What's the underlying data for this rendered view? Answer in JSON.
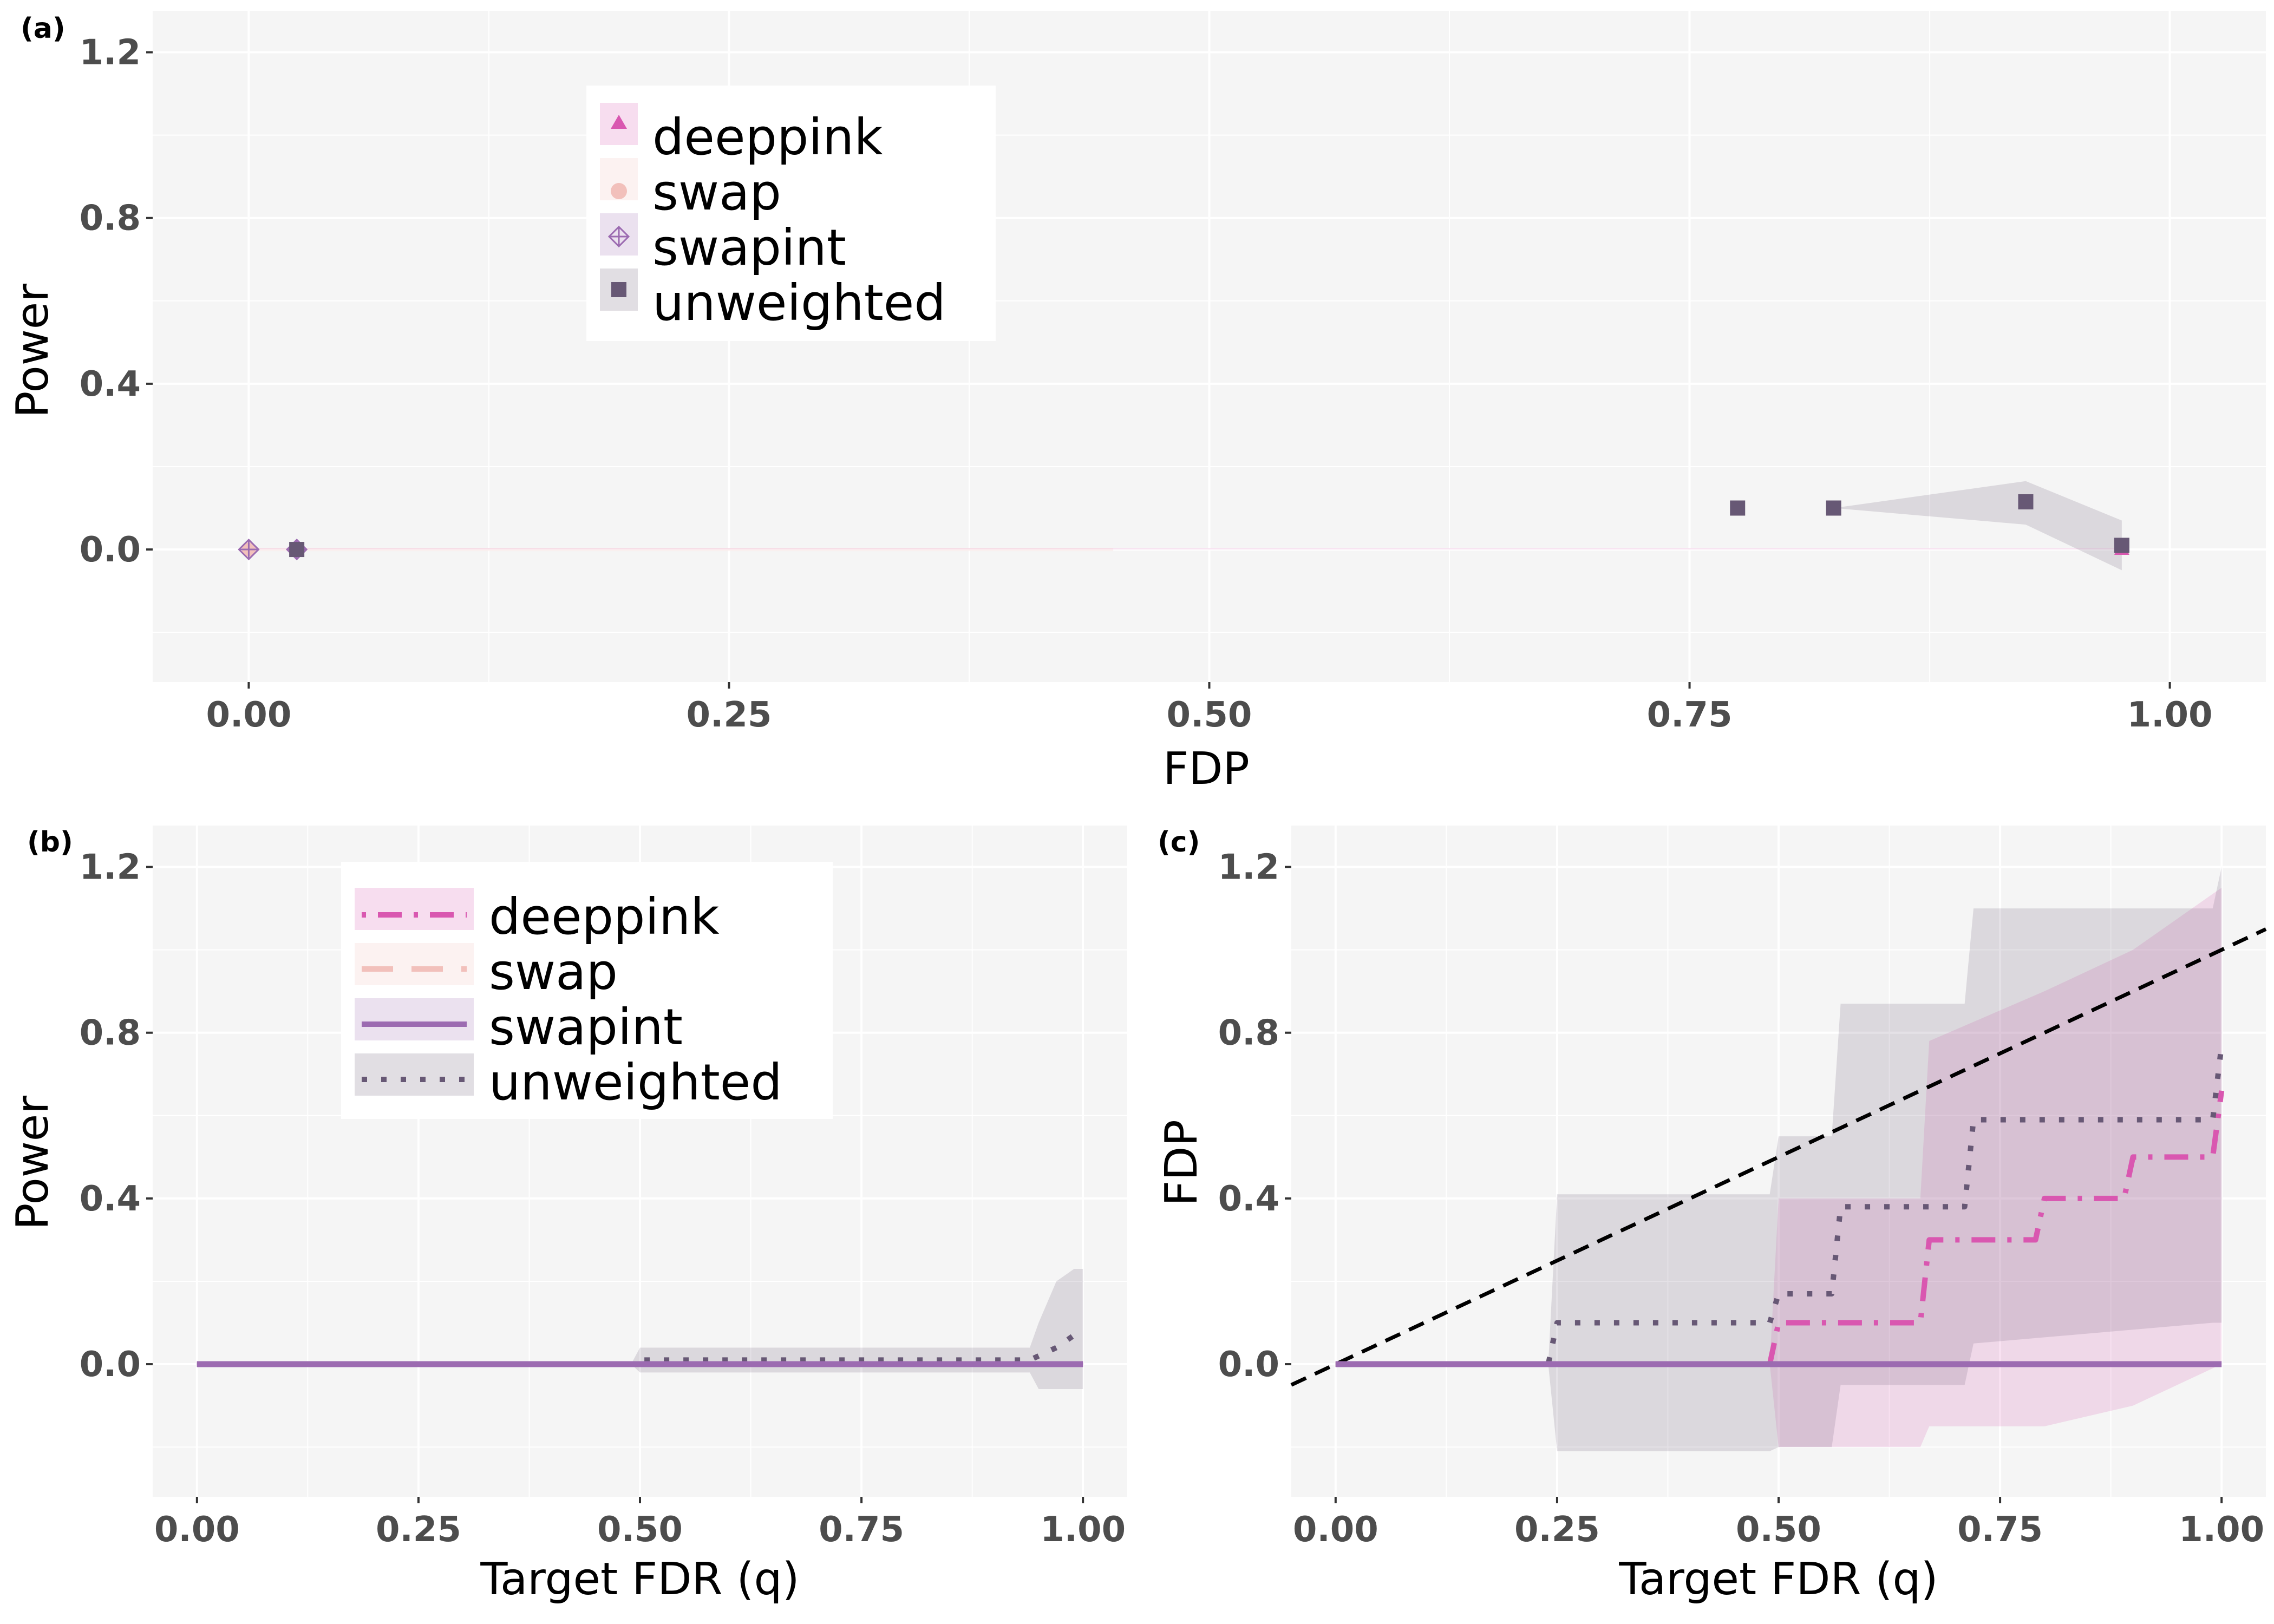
{
  "colors": {
    "deeppink": "#d957b0",
    "swap": "#f2c0bb",
    "swapint": "#9c6bb1",
    "unweighted": "#675875",
    "panel_bg": "#f5f5f5",
    "grid": "#ffffff",
    "reference_line": "#000000"
  },
  "chart_data": [
    {
      "tag": "(a)",
      "type": "scatter",
      "xlabel": "FDP",
      "ylabel": "Power",
      "xlim": [
        -0.05,
        1.05
      ],
      "ylim": [
        -0.32,
        1.3
      ],
      "xticks": [
        0.0,
        0.25,
        0.5,
        0.75,
        1.0
      ],
      "xtick_labels": [
        "0.00",
        "0.25",
        "0.50",
        "0.75",
        "1.00"
      ],
      "yticks": [
        0.0,
        0.4,
        0.8,
        1.2
      ],
      "ytick_labels": [
        "0.0",
        "0.4",
        "0.8",
        "1.2"
      ],
      "grid": true,
      "legend_position": "top-left",
      "legend": [
        "deeppink",
        "swap",
        "swapint",
        "unweighted"
      ],
      "series": [
        {
          "name": "deeppink",
          "marker": "triangle",
          "points": [
            [
              0.025,
              0.0
            ],
            [
              0.975,
              0.0
            ]
          ],
          "band": [
            [
              0.0,
              0.0,
              0.003
            ],
            [
              0.975,
              0.0,
              0.003
            ]
          ]
        },
        {
          "name": "swap",
          "marker": "circle",
          "points": [
            [
              0.0,
              0.0
            ],
            [
              0.025,
              0.0
            ]
          ],
          "band": [
            [
              0.0,
              -0.004,
              0.004
            ],
            [
              0.45,
              -0.004,
              0.004
            ]
          ]
        },
        {
          "name": "swapint",
          "marker": "diamond-plus",
          "points": [
            [
              0.0,
              0.0
            ],
            [
              0.025,
              0.0
            ]
          ]
        },
        {
          "name": "unweighted",
          "marker": "square",
          "points": [
            [
              0.025,
              0.0
            ],
            [
              0.775,
              0.1
            ],
            [
              0.825,
              0.1
            ],
            [
              0.925,
              0.115
            ],
            [
              0.975,
              0.01
            ]
          ],
          "band": [
            [
              0.825,
              0.1,
              0.1
            ],
            [
              0.925,
              0.06,
              0.165
            ],
            [
              0.975,
              -0.05,
              0.07
            ]
          ]
        }
      ]
    },
    {
      "tag": "(b)",
      "type": "line",
      "xlabel": "Target FDR (q)",
      "ylabel": "Power",
      "xlim": [
        -0.05,
        1.05
      ],
      "ylim": [
        -0.32,
        1.3
      ],
      "xticks": [
        0.0,
        0.25,
        0.5,
        0.75,
        1.0
      ],
      "xtick_labels": [
        "0.00",
        "0.25",
        "0.50",
        "0.75",
        "1.00"
      ],
      "yticks": [
        0.0,
        0.4,
        0.8,
        1.2
      ],
      "ytick_labels": [
        "0.0",
        "0.4",
        "0.8",
        "1.2"
      ],
      "grid": true,
      "legend_position": "top-left",
      "legend": [
        "deeppink",
        "swap",
        "swapint",
        "unweighted"
      ],
      "series": [
        {
          "name": "deeppink",
          "dash": "dashdot",
          "x": [
            0.0,
            1.0
          ],
          "y": [
            0.0,
            0.0
          ]
        },
        {
          "name": "swap",
          "dash": "longdash",
          "x": [
            0.0,
            1.0
          ],
          "y": [
            0.0,
            0.0
          ]
        },
        {
          "name": "swapint",
          "dash": "solid",
          "x": [
            0.0,
            1.0
          ],
          "y": [
            0.0,
            0.0
          ]
        },
        {
          "name": "unweighted",
          "dash": "dotted",
          "x": [
            0.0,
            0.49,
            0.5,
            0.94,
            0.95,
            0.97,
            0.99,
            1.0
          ],
          "y": [
            0.0,
            0.0,
            0.01,
            0.01,
            0.02,
            0.04,
            0.07,
            0.08
          ],
          "band": [
            [
              0.49,
              0.0,
              0.0
            ],
            [
              0.5,
              -0.02,
              0.04
            ],
            [
              0.94,
              -0.02,
              0.04
            ],
            [
              0.95,
              -0.06,
              0.1
            ],
            [
              0.97,
              -0.06,
              0.2
            ],
            [
              0.99,
              -0.06,
              0.23
            ],
            [
              1.0,
              -0.06,
              0.23
            ]
          ]
        }
      ]
    },
    {
      "tag": "(c)",
      "type": "line",
      "xlabel": "Target FDR (q)",
      "ylabel": "FDP",
      "xlim": [
        -0.05,
        1.05
      ],
      "ylim": [
        -0.32,
        1.3
      ],
      "xticks": [
        0.0,
        0.25,
        0.5,
        0.75,
        1.0
      ],
      "xtick_labels": [
        "0.00",
        "0.25",
        "0.50",
        "0.75",
        "1.00"
      ],
      "yticks": [
        0.0,
        0.4,
        0.8,
        1.2
      ],
      "ytick_labels": [
        "0.0",
        "0.4",
        "0.8",
        "1.2"
      ],
      "grid": true,
      "reference_line": {
        "slope": 1,
        "intercept": 0
      },
      "series": [
        {
          "name": "deeppink",
          "dash": "dashdot",
          "x": [
            0.0,
            0.49,
            0.5,
            0.66,
            0.67,
            0.79,
            0.8,
            0.89,
            0.9,
            0.99,
            1.0
          ],
          "y": [
            0.0,
            0.0,
            0.1,
            0.1,
            0.3,
            0.3,
            0.4,
            0.4,
            0.5,
            0.5,
            0.66
          ],
          "band": [
            [
              0.49,
              0.0,
              0.0
            ],
            [
              0.5,
              -0.2,
              0.4
            ],
            [
              0.66,
              -0.2,
              0.4
            ],
            [
              0.67,
              -0.15,
              0.78
            ],
            [
              0.8,
              -0.15,
              0.9
            ],
            [
              0.9,
              -0.1,
              1.0
            ],
            [
              1.0,
              0.0,
              1.15
            ]
          ]
        },
        {
          "name": "swap",
          "dash": "longdash",
          "x": [
            0.0,
            1.0
          ],
          "y": [
            0.0,
            0.0
          ]
        },
        {
          "name": "swapint",
          "dash": "solid",
          "x": [
            0.0,
            1.0
          ],
          "y": [
            0.0,
            0.0
          ]
        },
        {
          "name": "unweighted",
          "dash": "dotted",
          "x": [
            0.0,
            0.24,
            0.25,
            0.49,
            0.5,
            0.56,
            0.57,
            0.71,
            0.72,
            0.99,
            1.0
          ],
          "y": [
            0.0,
            0.0,
            0.1,
            0.1,
            0.17,
            0.17,
            0.38,
            0.38,
            0.59,
            0.59,
            0.77
          ],
          "band": [
            [
              0.24,
              0.0,
              0.0
            ],
            [
              0.25,
              -0.21,
              0.41
            ],
            [
              0.49,
              -0.21,
              0.41
            ],
            [
              0.5,
              -0.2,
              0.55
            ],
            [
              0.56,
              -0.2,
              0.55
            ],
            [
              0.57,
              -0.05,
              0.87
            ],
            [
              0.71,
              -0.05,
              0.87
            ],
            [
              0.72,
              0.05,
              1.1
            ],
            [
              0.99,
              0.1,
              1.1
            ],
            [
              1.0,
              0.1,
              1.2
            ]
          ]
        }
      ]
    }
  ]
}
